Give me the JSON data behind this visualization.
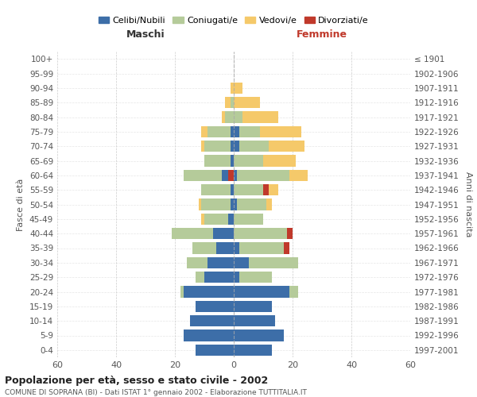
{
  "age_groups": [
    "0-4",
    "5-9",
    "10-14",
    "15-19",
    "20-24",
    "25-29",
    "30-34",
    "35-39",
    "40-44",
    "45-49",
    "50-54",
    "55-59",
    "60-64",
    "65-69",
    "70-74",
    "75-79",
    "80-84",
    "85-89",
    "90-94",
    "95-99",
    "100+"
  ],
  "birth_years": [
    "1997-2001",
    "1992-1996",
    "1987-1991",
    "1982-1986",
    "1977-1981",
    "1972-1976",
    "1967-1971",
    "1962-1966",
    "1957-1961",
    "1952-1956",
    "1947-1951",
    "1942-1946",
    "1937-1941",
    "1932-1936",
    "1927-1931",
    "1922-1926",
    "1917-1921",
    "1912-1916",
    "1907-1911",
    "1902-1906",
    "≤ 1901"
  ],
  "maschi": {
    "celibi": [
      13,
      17,
      15,
      13,
      17,
      10,
      9,
      6,
      7,
      2,
      1,
      1,
      2,
      1,
      1,
      1,
      0,
      0,
      0,
      0,
      0
    ],
    "coniugati": [
      0,
      0,
      0,
      0,
      1,
      3,
      7,
      8,
      14,
      8,
      10,
      10,
      13,
      9,
      9,
      8,
      3,
      1,
      0,
      0,
      0
    ],
    "vedovi": [
      0,
      0,
      0,
      0,
      0,
      0,
      0,
      0,
      0,
      1,
      1,
      0,
      0,
      0,
      1,
      2,
      1,
      2,
      1,
      0,
      0
    ],
    "divorziati": [
      0,
      0,
      0,
      0,
      0,
      0,
      0,
      0,
      0,
      0,
      0,
      0,
      2,
      0,
      0,
      0,
      0,
      0,
      0,
      0,
      0
    ]
  },
  "femmine": {
    "nubili": [
      13,
      17,
      14,
      13,
      19,
      2,
      5,
      2,
      0,
      0,
      1,
      0,
      1,
      0,
      2,
      2,
      0,
      0,
      0,
      0,
      0
    ],
    "coniugate": [
      0,
      0,
      0,
      0,
      3,
      11,
      17,
      15,
      18,
      10,
      10,
      10,
      18,
      10,
      10,
      7,
      3,
      0,
      0,
      0,
      0
    ],
    "vedove": [
      0,
      0,
      0,
      0,
      0,
      0,
      0,
      0,
      0,
      0,
      2,
      3,
      6,
      11,
      12,
      14,
      12,
      9,
      3,
      0,
      0
    ],
    "divorziate": [
      0,
      0,
      0,
      0,
      0,
      0,
      0,
      2,
      2,
      0,
      0,
      2,
      0,
      0,
      0,
      0,
      0,
      0,
      0,
      0,
      0
    ]
  },
  "colors": {
    "celibi": "#3d6ea8",
    "coniugati": "#b5cb9a",
    "vedovi": "#f5c96a",
    "divorziati": "#c0392b"
  },
  "title": "Popolazione per età, sesso e stato civile - 2002",
  "subtitle": "COMUNE DI SOPRANA (BI) - Dati ISTAT 1° gennaio 2002 - Elaborazione TUTTITALIA.IT",
  "xlabel_left": "Maschi",
  "xlabel_right": "Femmine",
  "ylabel_left": "Fasce di età",
  "ylabel_right": "Anni di nascita",
  "xlim": 60,
  "background_color": "#ffffff",
  "grid_color": "#cccccc"
}
